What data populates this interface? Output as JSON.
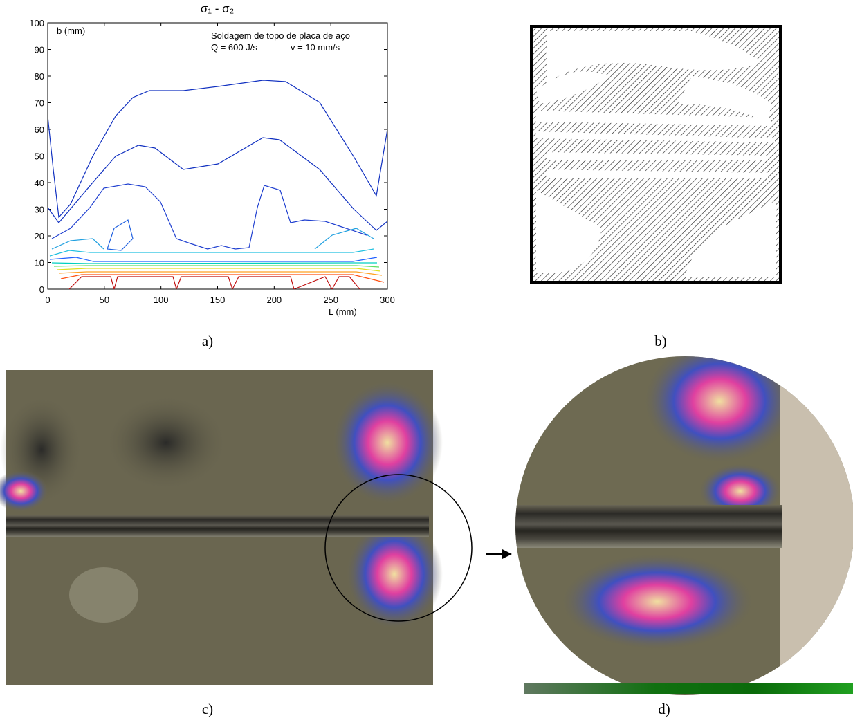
{
  "chart_data": {
    "type": "contour",
    "title": "σ₁ - σ₂",
    "annotations": [
      "Soldagem de topo de placa de aço",
      "Q = 600 J/s",
      "v = 10 mm/s"
    ],
    "y_label": "b  (mm)",
    "x_label": "L (mm)",
    "xlim": [
      0,
      300
    ],
    "xticks": [
      0,
      50,
      100,
      150,
      200,
      250,
      300
    ],
    "ylim": [
      0,
      100
    ],
    "yticks": [
      0,
      10,
      20,
      30,
      40,
      50,
      60,
      70,
      80,
      90,
      100
    ]
  },
  "panels": {
    "labels": [
      "a)",
      "b)",
      "c)",
      "d)"
    ]
  }
}
